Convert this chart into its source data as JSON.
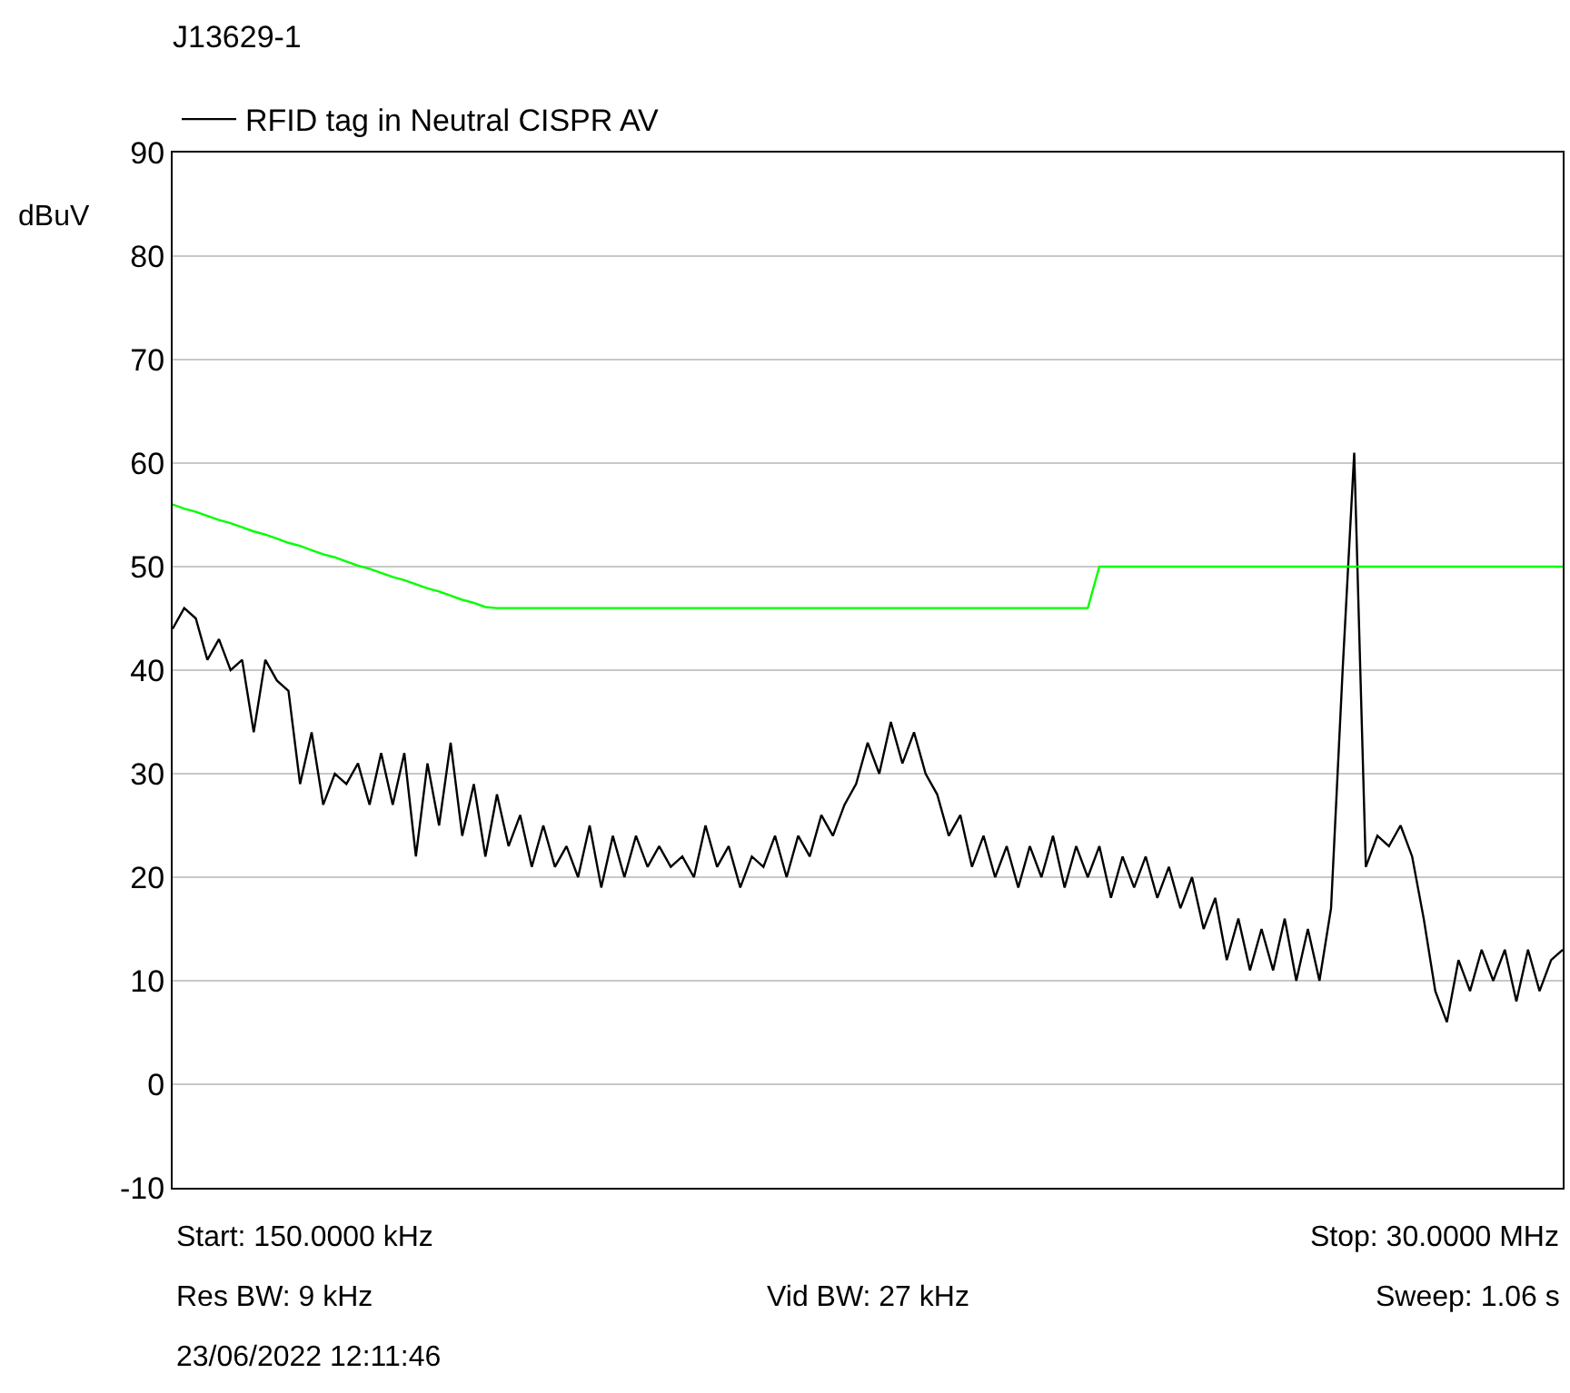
{
  "chart_data": {
    "type": "line",
    "title": "J13629-1",
    "ylabel": "dBuV",
    "annotations": [
      "Start: 150.0000 kHz",
      "Stop: 30.0000 MHz",
      "Res BW: 9 kHz",
      "Vid BW: 27 kHz",
      "Sweep: 1.06 s",
      "23/06/2022 12:11:46"
    ],
    "categories": [
      null,
      null,
      null,
      null,
      null,
      null,
      null,
      null,
      null,
      null,
      null,
      null,
      null,
      null,
      null,
      null,
      null,
      null,
      null,
      null,
      null,
      null,
      null,
      null,
      null,
      null,
      null,
      null,
      null,
      null,
      null,
      null,
      null,
      null,
      null,
      null,
      null,
      null,
      null,
      null,
      null,
      null,
      null,
      null,
      null,
      null,
      null,
      null,
      null,
      null,
      null,
      null,
      null,
      null,
      null,
      null,
      null,
      null,
      null,
      null,
      null,
      null,
      null,
      null,
      null,
      null,
      null,
      null,
      null,
      null,
      null,
      null,
      null,
      null,
      null,
      null,
      null,
      null,
      null,
      null,
      null,
      null,
      null,
      null,
      null,
      null,
      null,
      null,
      null,
      null,
      null,
      null,
      null,
      null,
      null,
      null,
      null,
      null,
      null,
      null,
      null,
      null,
      null,
      null,
      null,
      null,
      null,
      null,
      null,
      null,
      null,
      null,
      null,
      null,
      null,
      null,
      null,
      null,
      null,
      null,
      null
    ],
    "series": [
      {
        "name": "RFID tag in Neutral CISPR AV",
        "color": "#000000",
        "values": [
          44,
          46,
          45,
          41,
          43,
          40,
          41,
          34,
          41,
          39,
          38,
          29,
          34,
          27,
          30,
          29,
          31,
          27,
          32,
          27,
          32,
          22,
          31,
          25,
          33,
          24,
          29,
          22,
          28,
          23,
          26,
          21,
          25,
          21,
          23,
          20,
          25,
          19,
          24,
          20,
          24,
          21,
          23,
          21,
          22,
          20,
          25,
          21,
          23,
          19,
          22,
          21,
          24,
          20,
          24,
          22,
          26,
          24,
          27,
          29,
          33,
          30,
          35,
          31,
          34,
          30,
          28,
          24,
          26,
          21,
          24,
          20,
          23,
          19,
          23,
          20,
          24,
          19,
          23,
          20,
          23,
          18,
          22,
          19,
          22,
          18,
          21,
          17,
          20,
          15,
          18,
          12,
          16,
          11,
          15,
          11,
          16,
          10,
          15,
          10,
          17,
          40,
          61,
          21,
          24,
          23,
          25,
          22,
          16,
          9,
          6,
          12,
          9,
          13,
          10,
          13,
          8,
          13,
          9,
          12,
          13
        ]
      },
      {
        "color": "#00ff00",
        "values": [
          56,
          55.6,
          55.3,
          54.9,
          54.5,
          54.2,
          53.8,
          53.4,
          53.1,
          52.7,
          52.3,
          52,
          51.6,
          51.2,
          50.9,
          50.5,
          50.1,
          49.8,
          49.4,
          49,
          48.7,
          48.3,
          47.9,
          47.6,
          47.2,
          46.8,
          46.5,
          46.1,
          46,
          46,
          46,
          46,
          46,
          46,
          46,
          46,
          46,
          46,
          46,
          46,
          46,
          46,
          46,
          46,
          46,
          46,
          46,
          46,
          46,
          46,
          46,
          46,
          46,
          46,
          46,
          46,
          46,
          46,
          46,
          46,
          46,
          46,
          46,
          46,
          46,
          46,
          46,
          46,
          46,
          46,
          46,
          46,
          46,
          46,
          46,
          46,
          46,
          46,
          46,
          46,
          50,
          50,
          50,
          50,
          50,
          50,
          50,
          50,
          50,
          50,
          50,
          50,
          50,
          50,
          50,
          50,
          50,
          50,
          50,
          50,
          50,
          50,
          50,
          50,
          50,
          50,
          50,
          50,
          50,
          50,
          50,
          50,
          50,
          50,
          50,
          50,
          50,
          50,
          50,
          50,
          50
        ]
      }
    ],
    "ylim": [
      -10,
      90
    ],
    "yticks": [
      -10,
      0,
      10,
      20,
      30,
      40,
      50,
      60,
      70,
      80,
      90
    ],
    "tick_labels": "y",
    "grid": "y",
    "legend": "top left",
    "line_style": "solid",
    "marker": "none"
  }
}
